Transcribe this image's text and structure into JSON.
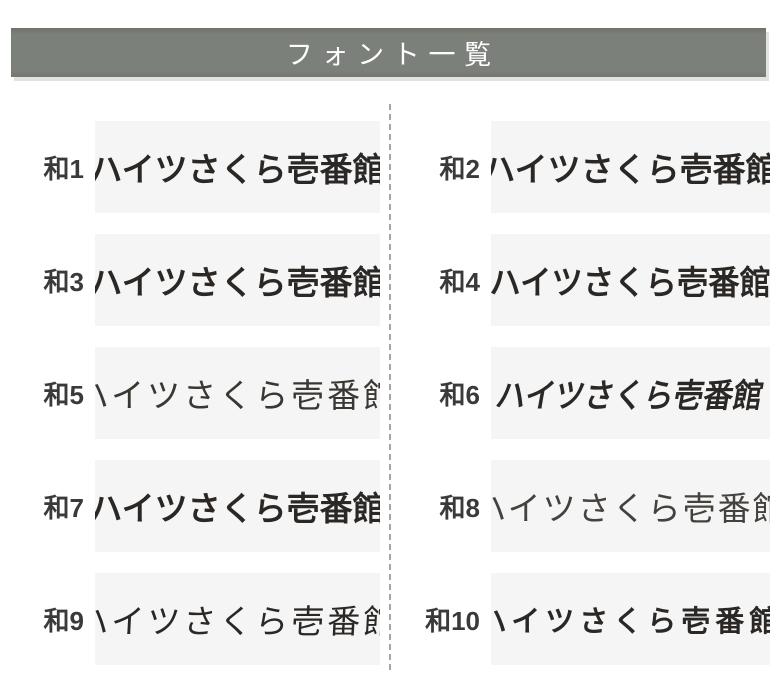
{
  "header": {
    "title": "フォント一覧"
  },
  "columns": {
    "left": [
      {
        "label": "和1",
        "sample": "ハイツさくら壱番館",
        "font_style": "gothic-medium"
      },
      {
        "label": "和3",
        "sample": "ハイツさくら壱番館",
        "font_style": "mincho-bold"
      },
      {
        "label": "和5",
        "sample": "ハイツさくら壱番館",
        "font_style": "light-pen-gothic"
      },
      {
        "label": "和7",
        "sample": "ハイツさくら壱番館",
        "font_style": "gothic-bold"
      },
      {
        "label": "和9",
        "sample": "ハイツさくら壱番館",
        "font_style": "semi-cursive-brush"
      }
    ],
    "right": [
      {
        "label": "和2",
        "sample": "ハイツさくら壱番館",
        "font_style": "rounded-gothic-bold"
      },
      {
        "label": "和4",
        "sample": "ハイツさくら壱番館",
        "font_style": "square-gothic-bold"
      },
      {
        "label": "和6",
        "sample": "ハイツさくら壱番館",
        "font_style": "italic-display-bold"
      },
      {
        "label": "和8",
        "sample": "ハイツさくら壱番館",
        "font_style": "thin-mincho-pen"
      },
      {
        "label": "和10",
        "sample": "ハイツさくら壱番館",
        "font_style": "brush-calligraphy"
      }
    ]
  },
  "colors": {
    "header_bg": "#7b7f78",
    "header_text": "#ffffff",
    "sample_bg": "#f4f5f4",
    "divider": "#a6a6a6",
    "sample_text_color": "#2b2725",
    "label_color": "#3a3a3a"
  }
}
